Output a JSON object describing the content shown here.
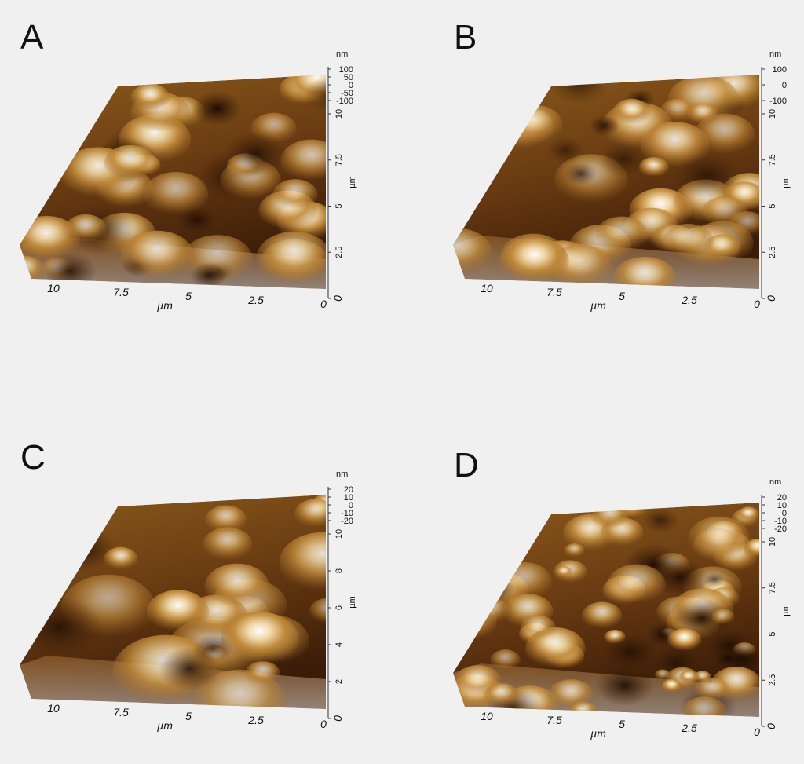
{
  "panels": [
    {
      "label": "A",
      "z_unit": "nm",
      "z_ticks": [
        "100",
        "50",
        "0",
        "-50",
        "-100"
      ],
      "y_unit": "µm",
      "y_ticks": [
        "0",
        "2.5",
        "5",
        "7.5",
        "10"
      ],
      "x_unit": "µm",
      "x_ticks": [
        "10",
        "7.5",
        "5",
        "2.5",
        "0"
      ]
    },
    {
      "label": "B",
      "z_unit": "nm",
      "z_ticks": [
        "100",
        "0",
        "-100"
      ],
      "y_unit": "µm",
      "y_ticks": [
        "0",
        "2.5",
        "5",
        "7.5",
        "10"
      ],
      "x_unit": "µm",
      "x_ticks": [
        "10",
        "7.5",
        "5",
        "2.5",
        "0"
      ]
    },
    {
      "label": "C",
      "z_unit": "nm",
      "z_ticks": [
        "20",
        "10",
        "0",
        "-10",
        "-20"
      ],
      "y_unit": "µm",
      "y_ticks": [
        "0",
        "2",
        "4",
        "6",
        "8",
        "10"
      ],
      "x_unit": "µm",
      "x_ticks": [
        "10",
        "7.5",
        "5",
        "2.5",
        "0"
      ]
    },
    {
      "label": "D",
      "z_unit": "nm",
      "z_ticks": [
        "20",
        "10",
        "0",
        "-10",
        "-20"
      ],
      "y_unit": "µm",
      "y_ticks": [
        "0",
        "2.5",
        "5",
        "7.5",
        "10"
      ],
      "x_unit": "µm",
      "x_ticks": [
        "10",
        "7.5",
        "5",
        "2.5",
        "0"
      ]
    }
  ]
}
